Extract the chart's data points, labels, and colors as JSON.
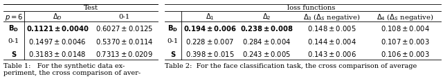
{
  "table1": {
    "title": "Test",
    "col_header_p6": "$p = 6$",
    "col_header_delta": "$\\Delta_D$",
    "col_header_01": "0-1",
    "rows": [
      [
        "$\\mathbf{B_D}$",
        "$\\mathbf{0.1121 \\pm 0.0040}$",
        "$0.6027 \\pm 0.0125$",
        true,
        false
      ],
      [
        "0-1",
        "$0.1497 \\pm 0.0046$",
        "$0.5370 \\pm 0.0114$",
        false,
        false
      ],
      [
        "$\\mathbf{S}$",
        "$0.3183 \\pm 0.0148$",
        "$0.7313 \\pm 0.0209$",
        false,
        false
      ]
    ],
    "caption_line1": "Table 1:   For the synthetic data ex-",
    "caption_line2": "periment, the cross comparison of aver-"
  },
  "table2": {
    "group_header": "loss functions",
    "col_headers": [
      "$\\Delta_1$",
      "$\\Delta_2$",
      "$\\Delta_3$ ($\\Delta_S$ negative)",
      "$\\Delta_4$ ($\\Delta_S$ negative)"
    ],
    "rows": [
      [
        "$\\mathbf{B_D}$",
        "$\\mathbf{0.194 \\pm 0.006}$",
        "$\\mathbf{0.238 \\pm 0.008}$",
        "$0.148 \\pm 0.005$",
        "$0.108 \\pm 0.004$"
      ],
      [
        "0-1",
        "$0.228 \\pm 0.007$",
        "$0.284 \\pm 0.004$",
        "$0.144 \\pm 0.004$",
        "$0.107 \\pm 0.003$"
      ],
      [
        "$\\mathbf{S}$",
        "$0.398 \\pm 0.015$",
        "$0.243 \\pm 0.005$",
        "$0.143 \\pm 0.006$",
        "$0.106 \\pm 0.003$"
      ]
    ],
    "caption": "Table 2:  For the face classification task, the cross comparison of average"
  },
  "bg_color": "#ffffff",
  "font_size": 7.2,
  "caption_font_size": 7.0
}
